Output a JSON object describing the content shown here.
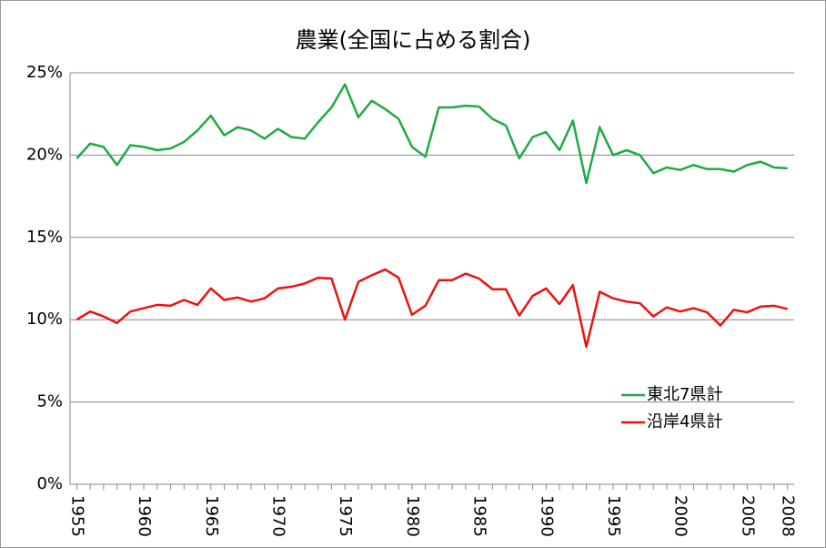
{
  "chart_data": {
    "type": "line",
    "title": "農業(全国に占める割合)",
    "x": [
      1955,
      1956,
      1957,
      1958,
      1959,
      1960,
      1961,
      1962,
      1963,
      1964,
      1965,
      1966,
      1967,
      1968,
      1969,
      1970,
      1971,
      1972,
      1973,
      1974,
      1975,
      1976,
      1977,
      1978,
      1979,
      1980,
      1981,
      1982,
      1983,
      1984,
      1985,
      1986,
      1987,
      1988,
      1989,
      1990,
      1991,
      1992,
      1993,
      1994,
      1995,
      1996,
      1997,
      1998,
      1999,
      2000,
      2001,
      2002,
      2003,
      2004,
      2005,
      2006,
      2007,
      2008
    ],
    "series": [
      {
        "name": "東北7県計",
        "color": "#1faa45",
        "values": [
          19.8,
          20.7,
          20.5,
          19.4,
          20.6,
          20.5,
          20.3,
          20.4,
          20.8,
          21.5,
          22.4,
          21.2,
          21.7,
          21.5,
          21.0,
          21.6,
          21.1,
          21.0,
          22.0,
          22.9,
          24.3,
          22.3,
          23.3,
          22.8,
          22.2,
          20.5,
          19.9,
          22.9,
          22.9,
          23.0,
          22.95,
          22.2,
          21.8,
          19.8,
          21.1,
          21.4,
          20.3,
          22.1,
          18.3,
          21.7,
          20.0,
          20.3,
          20.0,
          18.9,
          19.25,
          19.1,
          19.4,
          19.15,
          19.15,
          19.0,
          19.4,
          19.6,
          19.25,
          19.2
        ]
      },
      {
        "name": "沿岸4県計",
        "color": "#ee1111",
        "values": [
          10.0,
          10.5,
          10.2,
          9.8,
          10.5,
          10.7,
          10.9,
          10.85,
          11.2,
          10.9,
          11.9,
          11.2,
          11.35,
          11.1,
          11.3,
          11.9,
          12.0,
          12.2,
          12.55,
          12.5,
          10.0,
          12.3,
          12.7,
          13.05,
          12.55,
          10.3,
          10.85,
          12.4,
          12.4,
          12.8,
          12.5,
          11.85,
          11.85,
          10.25,
          11.45,
          11.9,
          10.95,
          12.1,
          8.35,
          11.7,
          11.3,
          11.1,
          11.0,
          10.2,
          10.75,
          10.5,
          10.7,
          10.45,
          9.65,
          10.6,
          10.45,
          10.8,
          10.85,
          10.65
        ]
      }
    ],
    "xlim": [
      1954.5,
      2008.5
    ],
    "xticks": [
      1955,
      1960,
      1965,
      1970,
      1975,
      1980,
      1985,
      1990,
      1995,
      2000,
      2005,
      2008
    ],
    "ylim": [
      0,
      25
    ],
    "yticks": [
      {
        "value": 0,
        "label": "0%"
      },
      {
        "value": 5,
        "label": "5%"
      },
      {
        "value": 10,
        "label": "10%"
      },
      {
        "value": 15,
        "label": "15%"
      },
      {
        "value": 20,
        "label": "20%"
      },
      {
        "value": 25,
        "label": "25%"
      }
    ],
    "grid": true,
    "legend": "lower right"
  }
}
